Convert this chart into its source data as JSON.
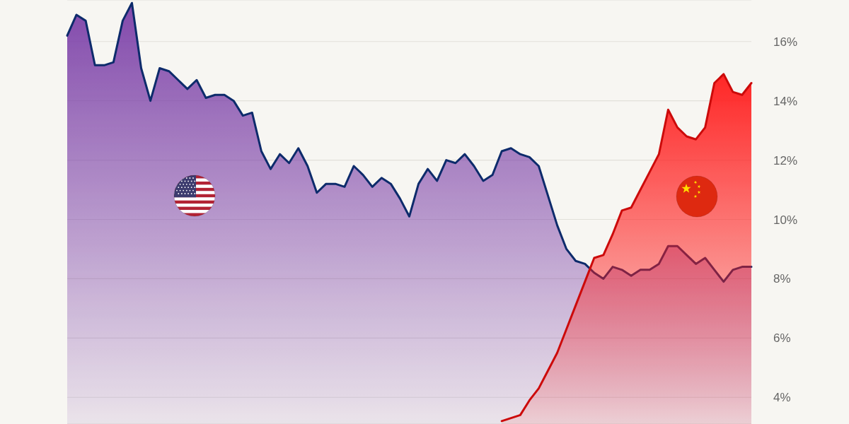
{
  "chart_data": {
    "type": "area",
    "categories": [
      null,
      null,
      null,
      null,
      null,
      null,
      null,
      null,
      null,
      null,
      null,
      null,
      null,
      null,
      null,
      null,
      null,
      null,
      null,
      null,
      null,
      null,
      null,
      null,
      null,
      null,
      null,
      null,
      null,
      null,
      null,
      null,
      null,
      null,
      null,
      null,
      null,
      null,
      null,
      null,
      null,
      null,
      null,
      null,
      null,
      null,
      null,
      null,
      null,
      null,
      null,
      null,
      null,
      null,
      null,
      null,
      null,
      null,
      null,
      null,
      null,
      null,
      null,
      null,
      null,
      null,
      null,
      null,
      null,
      null,
      null,
      null,
      null,
      null,
      null
    ],
    "series": [
      {
        "color": "#7b3fa8",
        "values": [
          16.2,
          16.9,
          16.7,
          15.2,
          15.2,
          15.3,
          16.7,
          17.3,
          15.1,
          14.0,
          15.1,
          15.0,
          14.7,
          14.4,
          14.7,
          14.1,
          14.2,
          14.2,
          14.0,
          13.5,
          13.6,
          12.3,
          11.7,
          12.2,
          11.9,
          12.4,
          11.8,
          10.9,
          11.2,
          11.2,
          11.1,
          11.8,
          11.5,
          11.1,
          11.4,
          11.2,
          10.7,
          10.1,
          11.2,
          11.7,
          11.3,
          12.0,
          11.9,
          12.2,
          11.8,
          11.3,
          11.5,
          12.3,
          12.4,
          12.2,
          12.1,
          11.8,
          10.8,
          9.8,
          9.0,
          8.6,
          8.5,
          8.2,
          8.0,
          8.4,
          8.3,
          8.1,
          8.3,
          8.3,
          8.5,
          9.1,
          9.1,
          8.8,
          8.5,
          8.7,
          8.3,
          7.9,
          8.3,
          8.4,
          8.4
        ]
      },
      {
        "color": "#ff1a1a",
        "values": [
          null,
          null,
          null,
          null,
          null,
          null,
          null,
          null,
          null,
          null,
          null,
          null,
          null,
          null,
          null,
          null,
          null,
          null,
          null,
          null,
          null,
          null,
          null,
          null,
          null,
          null,
          null,
          null,
          null,
          null,
          null,
          null,
          null,
          null,
          null,
          null,
          null,
          null,
          null,
          null,
          null,
          null,
          null,
          null,
          null,
          null,
          null,
          3.2,
          3.3,
          3.4,
          3.9,
          4.3,
          4.9,
          5.5,
          6.3,
          7.1,
          7.9,
          8.7,
          8.8,
          9.5,
          10.3,
          10.4,
          11.0,
          11.6,
          12.2,
          13.7,
          13.1,
          12.8,
          12.7,
          13.1,
          14.6,
          14.9,
          14.3,
          14.2,
          14.6
        ]
      }
    ],
    "ylim": [
      3.1,
      17.4
    ],
    "yticks": [
      {
        "value": 4,
        "label": "4%"
      },
      {
        "value": 6,
        "label": "6%"
      },
      {
        "value": 8,
        "label": "8%"
      },
      {
        "value": 10,
        "label": "10%"
      },
      {
        "value": 12,
        "label": "12%"
      },
      {
        "value": 14,
        "label": "14%"
      },
      {
        "value": 16,
        "label": "16%"
      }
    ],
    "grid": "y",
    "tick_labels": "y"
  }
}
